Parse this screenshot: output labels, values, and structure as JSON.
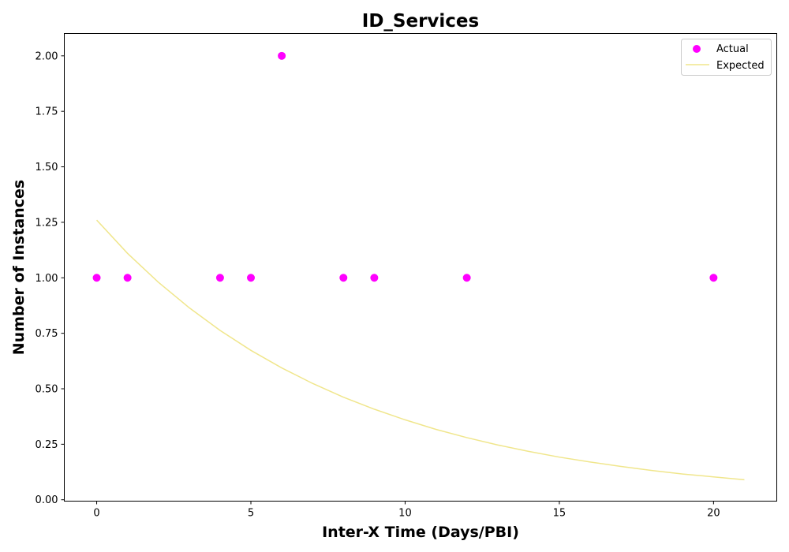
{
  "chart_data": {
    "type": "scatter",
    "title": "ID_Services",
    "xlabel": "Inter-X Time (Days/PBI)",
    "ylabel": "Number of Instances",
    "xlim": [
      -1.05,
      22.05
    ],
    "ylim": [
      -0.0063,
      2.1006
    ],
    "x_ticks": [
      0,
      5,
      10,
      15,
      20
    ],
    "y_ticks": [
      0.0,
      0.25,
      0.5,
      0.75,
      1.0,
      1.25,
      1.5,
      1.75,
      2.0
    ],
    "x_tick_labels": [
      "0",
      "5",
      "10",
      "15",
      "20"
    ],
    "y_tick_labels": [
      "0.00",
      "0.25",
      "0.50",
      "0.75",
      "1.00",
      "1.25",
      "1.50",
      "1.75",
      "2.00"
    ],
    "grid": false,
    "legend_position": "top-right",
    "series": [
      {
        "name": "Actual",
        "kind": "scatter",
        "color": "#ff00ff",
        "points": [
          {
            "x": 0,
            "y": 1.0
          },
          {
            "x": 1,
            "y": 1.0
          },
          {
            "x": 4,
            "y": 1.0
          },
          {
            "x": 5,
            "y": 1.0
          },
          {
            "x": 6,
            "y": 2.0
          },
          {
            "x": 8,
            "y": 1.0
          },
          {
            "x": 9,
            "y": 1.0
          },
          {
            "x": 12,
            "y": 1.0
          },
          {
            "x": 20,
            "y": 1.0
          }
        ]
      },
      {
        "name": "Expected",
        "kind": "line",
        "color": "#f0e68c",
        "points": [
          {
            "x": 0,
            "y": 1.26
          },
          {
            "x": 1,
            "y": 1.11
          },
          {
            "x": 2,
            "y": 0.98
          },
          {
            "x": 3,
            "y": 0.865
          },
          {
            "x": 4,
            "y": 0.763
          },
          {
            "x": 5,
            "y": 0.673
          },
          {
            "x": 6,
            "y": 0.594
          },
          {
            "x": 7,
            "y": 0.524
          },
          {
            "x": 8,
            "y": 0.462
          },
          {
            "x": 9,
            "y": 0.408
          },
          {
            "x": 10,
            "y": 0.36
          },
          {
            "x": 11,
            "y": 0.317
          },
          {
            "x": 12,
            "y": 0.28
          },
          {
            "x": 13,
            "y": 0.247
          },
          {
            "x": 14,
            "y": 0.218
          },
          {
            "x": 15,
            "y": 0.192
          },
          {
            "x": 16,
            "y": 0.17
          },
          {
            "x": 17,
            "y": 0.15
          },
          {
            "x": 18,
            "y": 0.132
          },
          {
            "x": 19,
            "y": 0.116
          },
          {
            "x": 20,
            "y": 0.103
          },
          {
            "x": 21,
            "y": 0.09
          }
        ]
      }
    ]
  }
}
